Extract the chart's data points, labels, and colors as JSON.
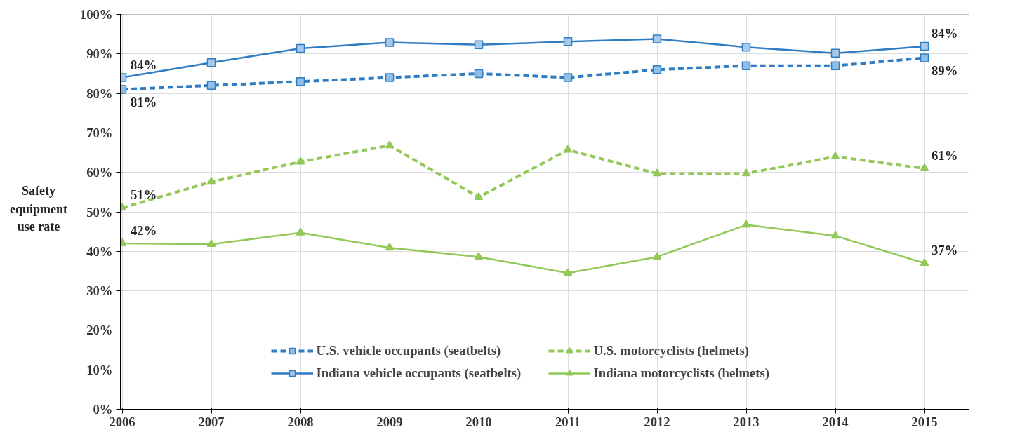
{
  "chart_data": {
    "type": "line",
    "ylabel": "Safety equipment use rate",
    "categories": [
      "2006",
      "2007",
      "2008",
      "2009",
      "2010",
      "2011",
      "2012",
      "2013",
      "2014",
      "2015"
    ],
    "series": [
      {
        "name": "U.S. vehicle occupants (seatbelts)",
        "color": "#2e7dc4",
        "line_style": "dashed",
        "marker": "square",
        "values": [
          81,
          82,
          83,
          84,
          85,
          84,
          86,
          87,
          87,
          89
        ]
      },
      {
        "name": "Indiana vehicle occupants (seatbelts)",
        "color": "#2e7dc4",
        "line_style": "solid",
        "marker": "square",
        "values": [
          84,
          87.8,
          91.4,
          92.9,
          92.3,
          93.1,
          93.8,
          91.7,
          90.2,
          91.9
        ]
      },
      {
        "name": "U.S. motorcyclists (helmets)",
        "color": "#92c857",
        "line_style": "dashed",
        "marker": "triangle",
        "values": [
          51,
          57.6,
          62.7,
          66.8,
          53.7,
          65.7,
          59.7,
          59.7,
          64,
          61
        ]
      },
      {
        "name": "Indiana motorcyclists (helmets)",
        "color": "#92c857",
        "line_style": "solid",
        "marker": "triangle",
        "values": [
          42,
          41.8,
          44.7,
          40.9,
          38.6,
          34.5,
          38.6,
          46.7,
          43.9,
          37
        ]
      }
    ],
    "ylim": [
      0,
      100
    ],
    "yticks": [
      {
        "value": 0,
        "label": "0%"
      },
      {
        "value": 10,
        "label": "10%"
      },
      {
        "value": 20,
        "label": "20%"
      },
      {
        "value": 30,
        "label": "30%"
      },
      {
        "value": 40,
        "label": "40%"
      },
      {
        "value": 50,
        "label": "50%"
      },
      {
        "value": 60,
        "label": "60%"
      },
      {
        "value": 70,
        "label": "70%"
      },
      {
        "value": 80,
        "label": "80%"
      },
      {
        "value": 90,
        "label": "90%"
      },
      {
        "value": 100,
        "label": "100%"
      }
    ],
    "annotations": [
      {
        "text": "84%",
        "x": "2006",
        "y": 84
      },
      {
        "text": "81%",
        "x": "2006",
        "y": 81
      },
      {
        "text": "51%",
        "x": "2006",
        "y": 51
      },
      {
        "text": "42%",
        "x": "2006",
        "y": 42
      },
      {
        "text": "84%",
        "x": "2015",
        "y": 91.9
      },
      {
        "text": "89%",
        "x": "2015",
        "y": 89
      },
      {
        "text": "61%",
        "x": "2015",
        "y": 61
      },
      {
        "text": "37%",
        "x": "2015",
        "y": 37
      }
    ],
    "grid": true,
    "legend": "bottom"
  }
}
